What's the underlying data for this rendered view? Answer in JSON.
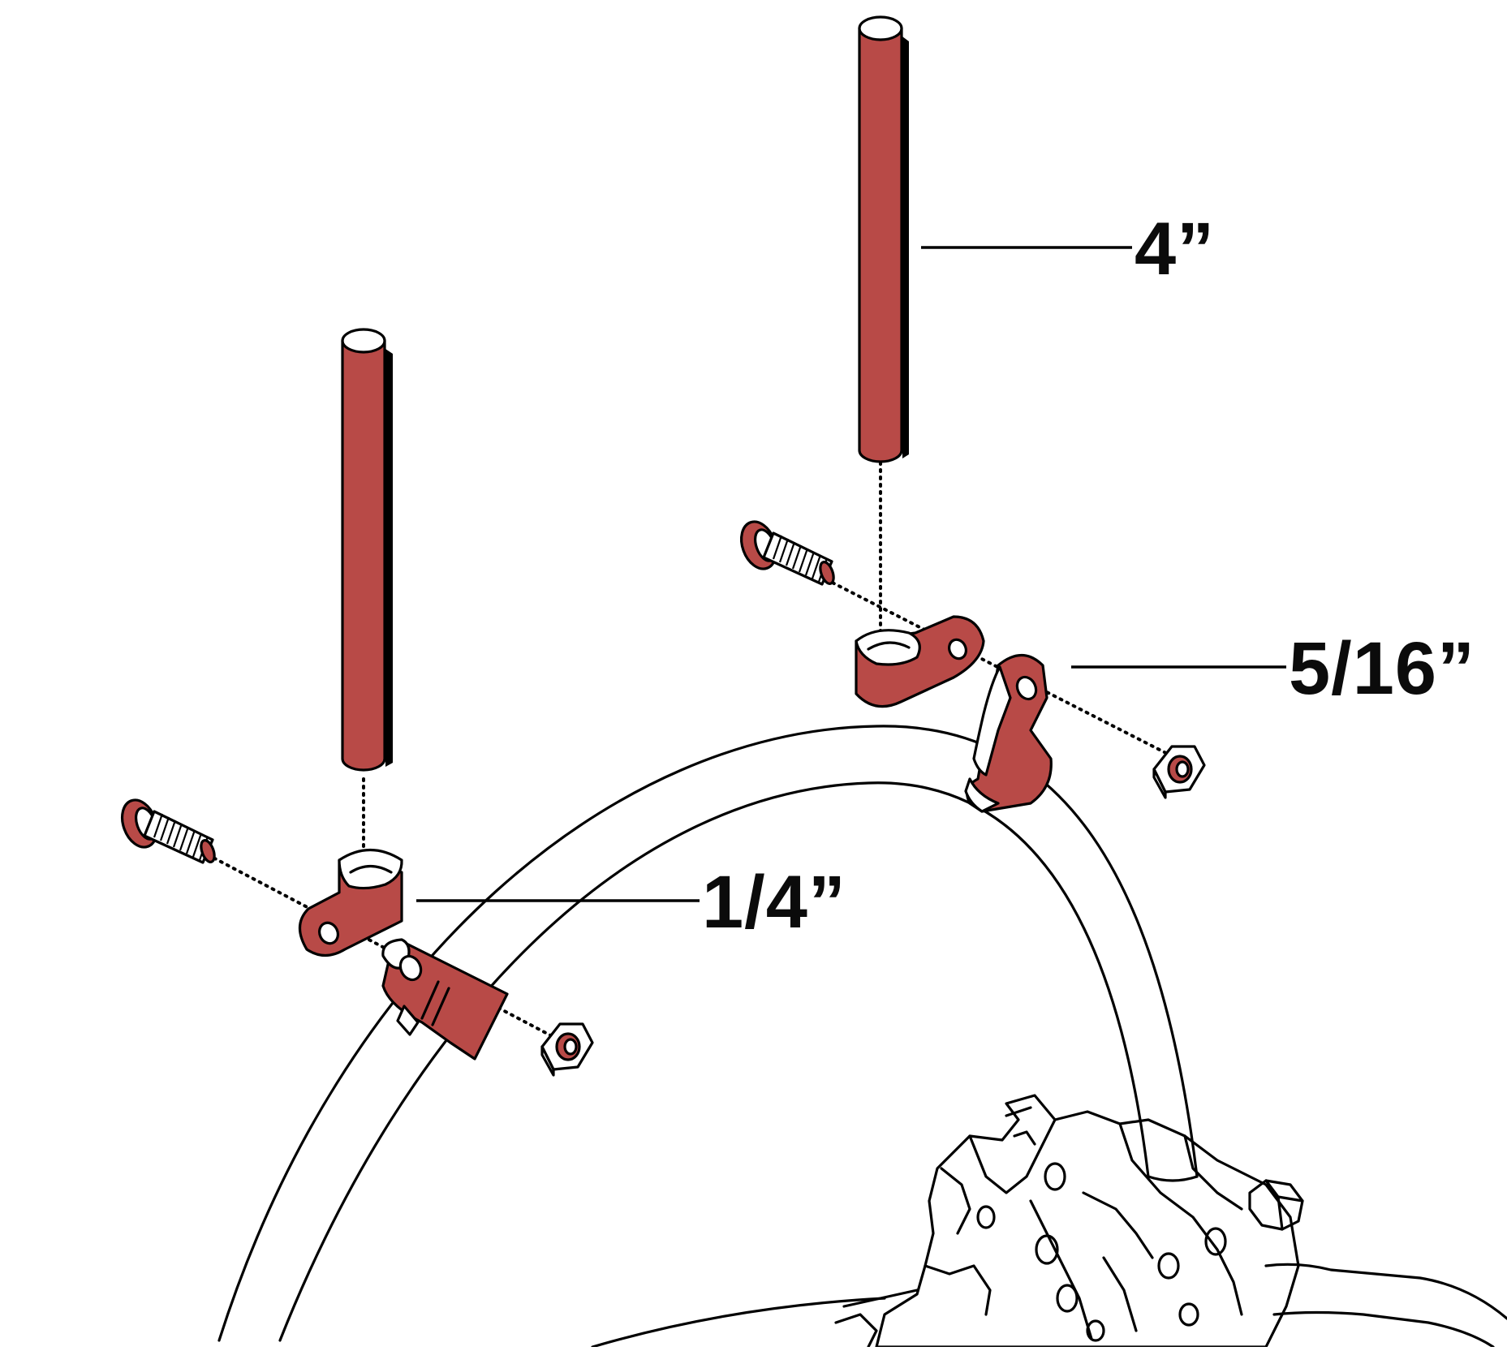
{
  "colors": {
    "part_fill": "#b84a47",
    "ink": "#000000",
    "background": "#ffffff"
  },
  "callouts": {
    "rod_length": "4”",
    "clamp_large": "5/16”",
    "clamp_small": "1/4”"
  }
}
